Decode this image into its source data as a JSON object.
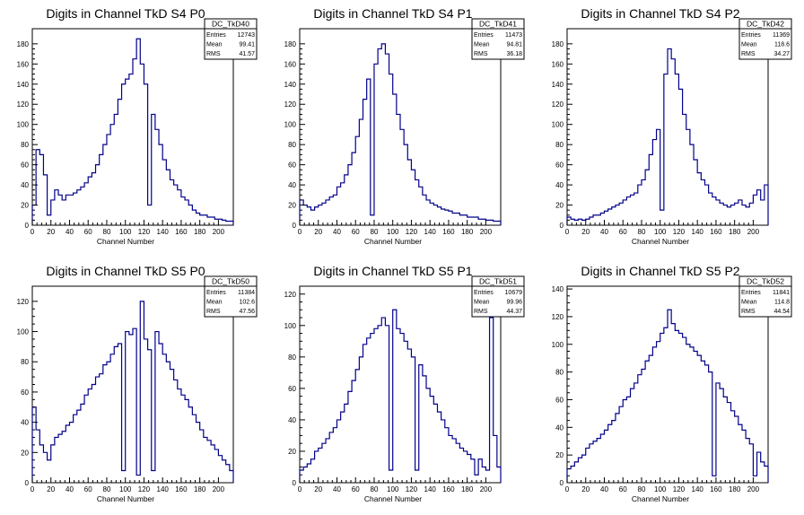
{
  "chart_data": [
    {
      "type": "histogram",
      "title": "Digits in Channel TkD S4 P0",
      "xlabel": "Channel Number",
      "xlim": [
        0,
        216
      ],
      "ylim": [
        0,
        195
      ],
      "xticks": [
        0,
        20,
        40,
        60,
        80,
        100,
        120,
        140,
        160,
        180,
        200
      ],
      "yticks": [
        0,
        20,
        40,
        60,
        80,
        100,
        120,
        140,
        160,
        180
      ],
      "color": "#00008b",
      "stats": {
        "name": "DC_TkD40",
        "entries": "12743",
        "mean": "99.41",
        "rms": "41.57"
      },
      "x": [
        0,
        4,
        8,
        12,
        16,
        20,
        24,
        28,
        32,
        36,
        40,
        44,
        48,
        52,
        56,
        60,
        64,
        68,
        72,
        76,
        80,
        84,
        88,
        92,
        96,
        100,
        104,
        108,
        112,
        116,
        120,
        124,
        128,
        132,
        136,
        140,
        144,
        148,
        152,
        156,
        160,
        164,
        168,
        172,
        176,
        180,
        184,
        188,
        192,
        196,
        200,
        204,
        208,
        212
      ],
      "values": [
        20,
        75,
        70,
        50,
        10,
        25,
        35,
        30,
        25,
        30,
        30,
        32,
        35,
        38,
        42,
        48,
        52,
        60,
        70,
        80,
        90,
        100,
        110,
        125,
        140,
        145,
        150,
        165,
        185,
        160,
        140,
        20,
        110,
        95,
        80,
        65,
        55,
        45,
        40,
        35,
        28,
        25,
        20,
        15,
        12,
        10,
        10,
        8,
        8,
        6,
        6,
        5,
        4,
        4
      ]
    },
    {
      "type": "histogram",
      "title": "Digits in Channel TkD S4 P1",
      "xlabel": "Channel Number",
      "xlim": [
        0,
        216
      ],
      "ylim": [
        0,
        195
      ],
      "xticks": [
        0,
        20,
        40,
        60,
        80,
        100,
        120,
        140,
        160,
        180,
        200
      ],
      "yticks": [
        0,
        20,
        40,
        60,
        80,
        100,
        120,
        140,
        160,
        180
      ],
      "color": "#00008b",
      "stats": {
        "name": "DC_TkD41",
        "entries": "11473",
        "mean": "94.81",
        "rms": "36.18"
      },
      "x": [
        0,
        4,
        8,
        12,
        16,
        20,
        24,
        28,
        32,
        36,
        40,
        44,
        48,
        52,
        56,
        60,
        64,
        68,
        72,
        76,
        80,
        84,
        88,
        92,
        96,
        100,
        104,
        108,
        112,
        116,
        120,
        124,
        128,
        132,
        136,
        140,
        144,
        148,
        152,
        156,
        160,
        164,
        168,
        172,
        176,
        180,
        184,
        188,
        192,
        196,
        200,
        204,
        208,
        212
      ],
      "values": [
        25,
        20,
        18,
        15,
        18,
        20,
        22,
        25,
        28,
        30,
        38,
        42,
        50,
        60,
        72,
        88,
        105,
        125,
        145,
        10,
        160,
        175,
        180,
        170,
        150,
        130,
        110,
        95,
        80,
        65,
        55,
        45,
        38,
        30,
        25,
        22,
        20,
        18,
        16,
        15,
        14,
        12,
        12,
        10,
        10,
        8,
        8,
        8,
        6,
        6,
        5,
        5,
        4,
        4
      ]
    },
    {
      "type": "histogram",
      "title": "Digits in Channel TkD S4 P2",
      "xlabel": "Channel Number",
      "xlim": [
        0,
        216
      ],
      "ylim": [
        0,
        195
      ],
      "xticks": [
        0,
        20,
        40,
        60,
        80,
        100,
        120,
        140,
        160,
        180,
        200
      ],
      "yticks": [
        0,
        20,
        40,
        60,
        80,
        100,
        120,
        140,
        160,
        180
      ],
      "color": "#00008b",
      "stats": {
        "name": "DC_TkD42",
        "entries": "11369",
        "mean": "118.6",
        "rms": "34.27"
      },
      "x": [
        0,
        4,
        8,
        12,
        16,
        20,
        24,
        28,
        32,
        36,
        40,
        44,
        48,
        52,
        56,
        60,
        64,
        68,
        72,
        76,
        80,
        84,
        88,
        92,
        96,
        100,
        104,
        108,
        112,
        116,
        120,
        124,
        128,
        132,
        136,
        140,
        144,
        148,
        152,
        156,
        160,
        164,
        168,
        172,
        176,
        180,
        184,
        188,
        192,
        196,
        200,
        204,
        208,
        212
      ],
      "values": [
        8,
        6,
        5,
        6,
        5,
        6,
        8,
        10,
        10,
        12,
        14,
        16,
        18,
        20,
        22,
        25,
        28,
        30,
        32,
        40,
        45,
        55,
        70,
        85,
        95,
        15,
        150,
        175,
        165,
        150,
        135,
        110,
        95,
        80,
        65,
        52,
        45,
        40,
        32,
        28,
        25,
        22,
        20,
        18,
        20,
        22,
        25,
        20,
        18,
        22,
        30,
        35,
        25,
        40
      ]
    },
    {
      "type": "histogram",
      "title": "Digits in Channel TkD S5 P0",
      "xlabel": "Channel Number",
      "xlim": [
        0,
        216
      ],
      "ylim": [
        0,
        130
      ],
      "xticks": [
        0,
        20,
        40,
        60,
        80,
        100,
        120,
        140,
        160,
        180,
        200
      ],
      "yticks": [
        0,
        20,
        40,
        60,
        80,
        100,
        120
      ],
      "color": "#00008b",
      "stats": {
        "name": "DC_TkD50",
        "entries": "11384",
        "mean": "102.6",
        "rms": "47.56"
      },
      "x": [
        0,
        4,
        8,
        12,
        16,
        20,
        24,
        28,
        32,
        36,
        40,
        44,
        48,
        52,
        56,
        60,
        64,
        68,
        72,
        76,
        80,
        84,
        88,
        92,
        96,
        100,
        104,
        108,
        112,
        116,
        120,
        124,
        128,
        132,
        136,
        140,
        144,
        148,
        152,
        156,
        160,
        164,
        168,
        172,
        176,
        180,
        184,
        188,
        192,
        196,
        200,
        204,
        208,
        212
      ],
      "values": [
        50,
        35,
        25,
        20,
        15,
        25,
        30,
        32,
        34,
        38,
        40,
        45,
        48,
        52,
        58,
        62,
        65,
        70,
        72,
        78,
        80,
        85,
        90,
        92,
        8,
        100,
        98,
        102,
        5,
        120,
        95,
        88,
        8,
        100,
        92,
        85,
        80,
        75,
        68,
        62,
        58,
        55,
        50,
        45,
        40,
        35,
        30,
        28,
        25,
        22,
        18,
        15,
        12,
        8
      ]
    },
    {
      "type": "histogram",
      "title": "Digits in Channel TkD S5 P1",
      "xlabel": "Channel Number",
      "xlim": [
        0,
        216
      ],
      "ylim": [
        0,
        125
      ],
      "xticks": [
        0,
        20,
        40,
        60,
        80,
        100,
        120,
        140,
        160,
        180,
        200
      ],
      "yticks": [
        0,
        20,
        40,
        60,
        80,
        100,
        120
      ],
      "color": "#00008b",
      "stats": {
        "name": "DC_TkD51",
        "entries": "10679",
        "mean": "99.96",
        "rms": "44.37"
      },
      "x": [
        0,
        4,
        8,
        12,
        16,
        20,
        24,
        28,
        32,
        36,
        40,
        44,
        48,
        52,
        56,
        60,
        64,
        68,
        72,
        76,
        80,
        84,
        88,
        92,
        96,
        100,
        104,
        108,
        112,
        116,
        120,
        124,
        128,
        132,
        136,
        140,
        144,
        148,
        152,
        156,
        160,
        164,
        168,
        172,
        176,
        180,
        184,
        188,
        192,
        196,
        200,
        204,
        208,
        212
      ],
      "values": [
        8,
        10,
        12,
        15,
        20,
        22,
        25,
        28,
        32,
        35,
        40,
        45,
        50,
        58,
        65,
        72,
        80,
        88,
        92,
        95,
        98,
        100,
        105,
        100,
        8,
        110,
        98,
        95,
        90,
        85,
        80,
        8,
        75,
        68,
        60,
        55,
        50,
        45,
        40,
        35,
        30,
        28,
        25,
        22,
        20,
        18,
        15,
        5,
        15,
        10,
        8,
        105,
        30,
        10
      ]
    },
    {
      "type": "histogram",
      "title": "Digits in Channel TkD S5 P2",
      "xlabel": "Channel Number",
      "xlim": [
        0,
        216
      ],
      "ylim": [
        0,
        142
      ],
      "xticks": [
        0,
        20,
        40,
        60,
        80,
        100,
        120,
        140,
        160,
        180,
        200
      ],
      "yticks": [
        0,
        20,
        40,
        60,
        80,
        100,
        120,
        140
      ],
      "color": "#00008b",
      "stats": {
        "name": "DC_TkD52",
        "entries": "11841",
        "mean": "114.8",
        "rms": "44.54"
      },
      "x": [
        0,
        4,
        8,
        12,
        16,
        20,
        24,
        28,
        32,
        36,
        40,
        44,
        48,
        52,
        56,
        60,
        64,
        68,
        72,
        76,
        80,
        84,
        88,
        92,
        96,
        100,
        104,
        108,
        112,
        116,
        120,
        124,
        128,
        132,
        136,
        140,
        144,
        148,
        152,
        156,
        160,
        164,
        168,
        172,
        176,
        180,
        184,
        188,
        192,
        196,
        200,
        204,
        208,
        212
      ],
      "values": [
        10,
        12,
        15,
        18,
        20,
        25,
        28,
        30,
        32,
        35,
        38,
        42,
        45,
        50,
        55,
        60,
        62,
        68,
        72,
        78,
        82,
        88,
        92,
        98,
        102,
        108,
        112,
        125,
        115,
        110,
        108,
        105,
        100,
        98,
        95,
        92,
        88,
        85,
        80,
        5,
        72,
        68,
        62,
        58,
        52,
        48,
        42,
        38,
        32,
        28,
        5,
        22,
        15,
        12
      ]
    }
  ]
}
